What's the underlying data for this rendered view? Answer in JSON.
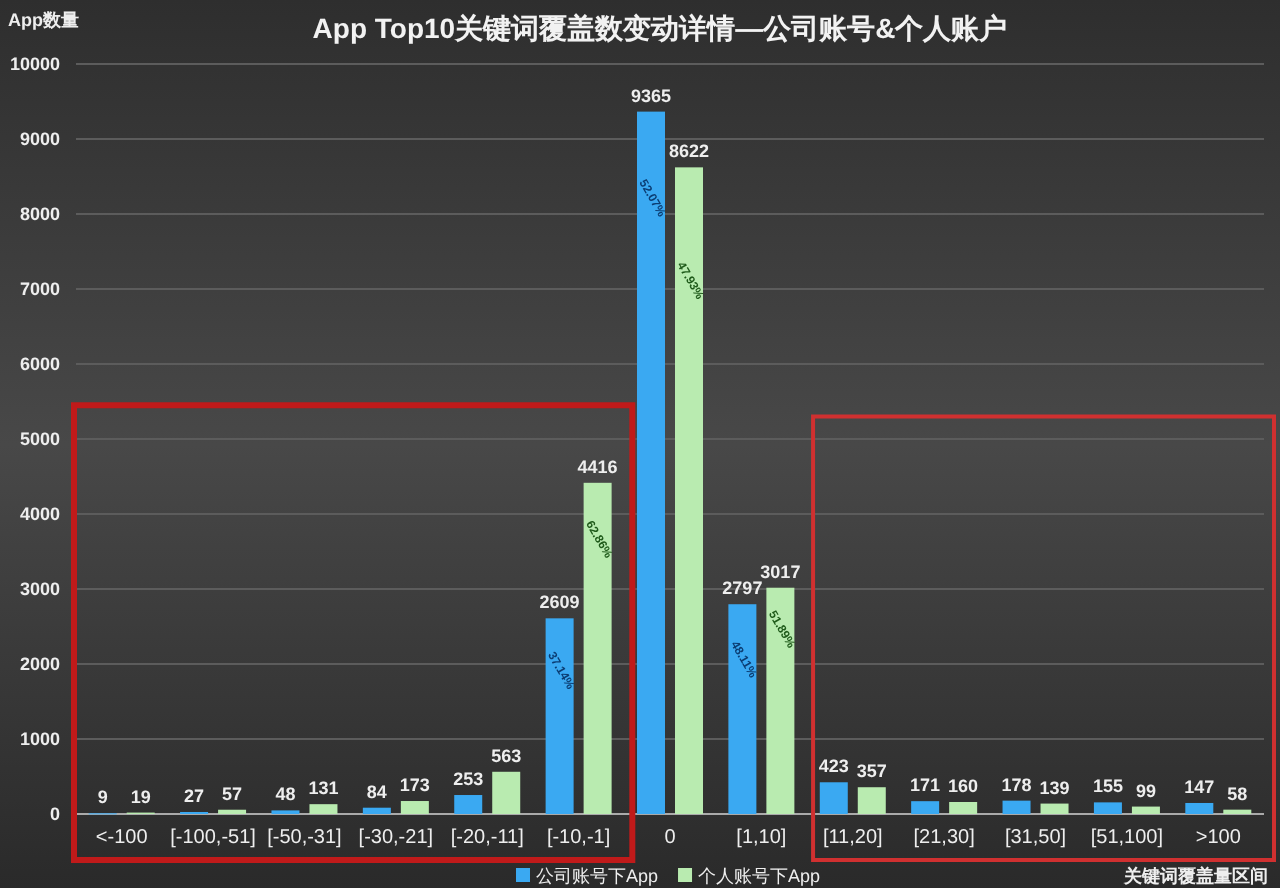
{
  "chart_data": {
    "type": "bar",
    "title": "App Top10关键词覆盖数变动详情—公司账号&个人账户",
    "ylabel": "App数量",
    "xlabel": "关键词覆盖量区间",
    "categories": [
      "<-100",
      "[-100,-51]",
      "[-50,-31]",
      "[-30,-21]",
      "[-20,-11]",
      "[-10,-1]",
      "0",
      "[1,10]",
      "[11,20]",
      "[21,30]",
      "[31,50]",
      "[51,100]",
      ">100"
    ],
    "series": [
      {
        "name": "公司账号下App",
        "color": "#3aa9f2",
        "values": [
          9,
          27,
          48,
          84,
          253,
          2609,
          9365,
          2797,
          423,
          171,
          178,
          155,
          147
        ]
      },
      {
        "name": "个人账号下App",
        "color": "#b9ebb0",
        "values": [
          19,
          57,
          131,
          173,
          563,
          4416,
          8622,
          3017,
          357,
          160,
          139,
          99,
          58
        ]
      }
    ],
    "annotations": [
      {
        "text": "37.14%",
        "x": "[-10,-1]",
        "y": 1900
      },
      {
        "text": "62.86%",
        "x": "[-10,-1]",
        "y": 3650
      },
      {
        "text": "52.07%",
        "x": "0",
        "y": 8200
      },
      {
        "text": "47.93%",
        "x": "0",
        "y": 7100
      },
      {
        "text": "48.11%",
        "x": "[1,10]",
        "y": 2050
      },
      {
        "text": "51.89%",
        "x": "[1,10]",
        "y": 2450
      }
    ],
    "ylim": [
      0,
      10000
    ],
    "yticks": [
      0,
      1000,
      2000,
      3000,
      4000,
      5000,
      6000,
      7000,
      8000,
      9000,
      10000
    ],
    "grid": "y",
    "legend": "bottom",
    "data_labels": true
  }
}
